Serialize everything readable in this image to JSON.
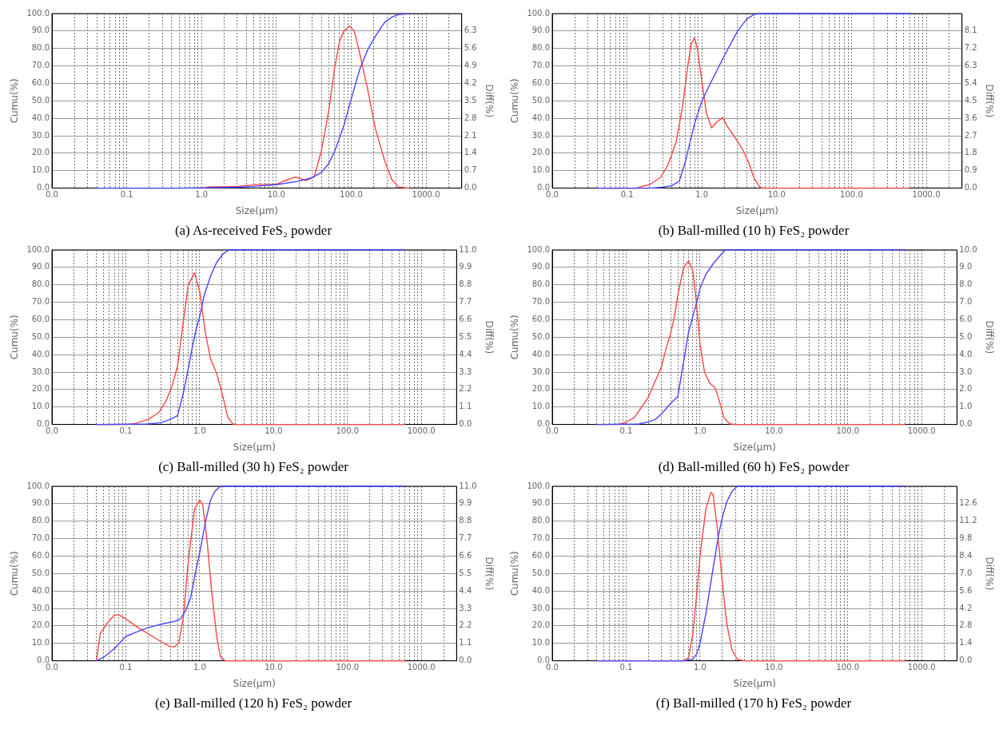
{
  "chart_data": [
    {
      "type": "line",
      "title": "(a) As-received FeS₂ powder",
      "xlabel": "Size(μm)",
      "ylabel": "Cumu(%)",
      "y2label": "Diff(%)",
      "log": "x",
      "grid": true,
      "xlim": [
        0.01,
        3000
      ],
      "ylim": [
        0,
        100
      ],
      "y2lim": [
        0,
        7
      ],
      "xticks": [
        {
          "value": 0.01,
          "label": "0.0"
        },
        {
          "value": 0.02,
          "label": null
        },
        {
          "value": 0.03,
          "label": null
        },
        {
          "value": 0.04,
          "label": null
        },
        {
          "value": 0.05,
          "label": null
        },
        {
          "value": 0.06,
          "label": null
        },
        {
          "value": 0.07,
          "label": null
        },
        {
          "value": 0.08,
          "label": null
        },
        {
          "value": 0.09,
          "label": null
        },
        {
          "value": 0.1,
          "label": "0.1"
        },
        {
          "value": 0.2,
          "label": null
        },
        {
          "value": 0.3,
          "label": null
        },
        {
          "value": 0.4,
          "label": null
        },
        {
          "value": 0.5,
          "label": null
        },
        {
          "value": 0.6,
          "label": null
        },
        {
          "value": 0.7,
          "label": null
        },
        {
          "value": 0.8,
          "label": null
        },
        {
          "value": 0.9,
          "label": null
        },
        {
          "value": 1,
          "label": "1.0"
        },
        {
          "value": 2,
          "label": null
        },
        {
          "value": 3,
          "label": null
        },
        {
          "value": 4,
          "label": null
        },
        {
          "value": 5,
          "label": null
        },
        {
          "value": 6,
          "label": null
        },
        {
          "value": 7,
          "label": null
        },
        {
          "value": 8,
          "label": null
        },
        {
          "value": 9,
          "label": null
        },
        {
          "value": 10,
          "label": "10.0"
        },
        {
          "value": 20,
          "label": null
        },
        {
          "value": 30,
          "label": null
        },
        {
          "value": 40,
          "label": null
        },
        {
          "value": 50,
          "label": null
        },
        {
          "value": 60,
          "label": null
        },
        {
          "value": 70,
          "label": null
        },
        {
          "value": 80,
          "label": null
        },
        {
          "value": 90,
          "label": null
        },
        {
          "value": 100,
          "label": "100.0"
        },
        {
          "value": 200,
          "label": null
        },
        {
          "value": 300,
          "label": null
        },
        {
          "value": 400,
          "label": null
        },
        {
          "value": 500,
          "label": null
        },
        {
          "value": 600,
          "label": null
        },
        {
          "value": 700,
          "label": null
        },
        {
          "value": 800,
          "label": null
        },
        {
          "value": 900,
          "label": null
        },
        {
          "value": 1000,
          "label": "1000.0"
        },
        {
          "value": 2000,
          "label": null
        }
      ],
      "yticks": [
        {
          "value": 0,
          "label": "0.0"
        },
        {
          "value": 10,
          "label": "10.0"
        },
        {
          "value": 20,
          "label": "20.0"
        },
        {
          "value": 30,
          "label": "30.0"
        },
        {
          "value": 40,
          "label": "40.0"
        },
        {
          "value": 50,
          "label": "50.0"
        },
        {
          "value": 60,
          "label": "60.0"
        },
        {
          "value": 70,
          "label": "70.0"
        },
        {
          "value": 80,
          "label": "80.0"
        },
        {
          "value": 90,
          "label": "90.0"
        },
        {
          "value": 100,
          "label": "100.0"
        }
      ],
      "y2ticks": [
        {
          "value": 0,
          "label": "0.0"
        },
        0.7,
        1.4,
        2.1,
        2.8,
        3.5,
        4.2,
        4.9,
        5.6,
        6.3
      ],
      "series": [
        {
          "color": "#4444ff",
          "x": [
            0.04,
            0.5,
            1,
            3,
            5,
            10,
            20,
            30,
            40,
            50,
            60,
            80,
            100,
            130,
            165,
            210,
            280,
            350,
            430,
            600
          ],
          "values": [
            0,
            0,
            0.2,
            0.5,
            1,
            2,
            4,
            6,
            9,
            14,
            21,
            36,
            51,
            68,
            79,
            87,
            95,
            98,
            99.5,
            100
          ]
        },
        {
          "color": "#ff4444",
          "axis": "y2",
          "x": [
            1,
            1.3,
            2,
            3,
            6,
            10,
            13,
            18,
            25,
            32,
            40,
            50,
            60,
            70,
            80,
            95,
            110,
            130,
            165,
            210,
            280,
            350,
            430,
            600
          ],
          "values": [
            0,
            0.05,
            0.05,
            0.07,
            0.15,
            0.15,
            0.3,
            0.45,
            0.3,
            0.45,
            1.5,
            3.1,
            4.8,
            5.9,
            6.3,
            6.5,
            6.3,
            5.4,
            4.0,
            2.4,
            1.1,
            0.34,
            0.04,
            0
          ]
        }
      ]
    },
    {
      "type": "line",
      "title": "(b) Ball-milled (10 h) FeS₂ powder",
      "xlabel": "Size(μm)",
      "ylabel": "Cumu(%)",
      "y2label": "Diff(%)",
      "log": "x",
      "grid": true,
      "xlim": [
        0.01,
        3000
      ],
      "ylim": [
        0,
        100
      ],
      "y2lim": [
        0,
        9
      ],
      "xticks": [
        {
          "value": 0.01,
          "label": "0.0"
        },
        {
          "value": 0.02,
          "label": null
        },
        {
          "value": 0.03,
          "label": null
        },
        {
          "value": 0.04,
          "label": null
        },
        {
          "value": 0.05,
          "label": null
        },
        {
          "value": 0.06,
          "label": null
        },
        {
          "value": 0.07,
          "label": null
        },
        {
          "value": 0.08,
          "label": null
        },
        {
          "value": 0.09,
          "label": null
        },
        {
          "value": 0.1,
          "label": "0.1"
        },
        {
          "value": 0.2,
          "label": null
        },
        {
          "value": 0.3,
          "label": null
        },
        {
          "value": 0.4,
          "label": null
        },
        {
          "value": 0.5,
          "label": null
        },
        {
          "value": 0.6,
          "label": null
        },
        {
          "value": 0.7,
          "label": null
        },
        {
          "value": 0.8,
          "label": null
        },
        {
          "value": 0.9,
          "label": null
        },
        {
          "value": 1,
          "label": "1.0"
        },
        {
          "value": 2,
          "label": null
        },
        {
          "value": 3,
          "label": null
        },
        {
          "value": 4,
          "label": null
        },
        {
          "value": 5,
          "label": null
        },
        {
          "value": 6,
          "label": null
        },
        {
          "value": 7,
          "label": null
        },
        {
          "value": 8,
          "label": null
        },
        {
          "value": 9,
          "label": null
        },
        {
          "value": 10,
          "label": "10.0"
        },
        {
          "value": 20,
          "label": null
        },
        {
          "value": 30,
          "label": null
        },
        {
          "value": 40,
          "label": null
        },
        {
          "value": 50,
          "label": null
        },
        {
          "value": 60,
          "label": null
        },
        {
          "value": 70,
          "label": null
        },
        {
          "value": 80,
          "label": null
        },
        {
          "value": 90,
          "label": null
        },
        {
          "value": 100,
          "label": "100.0"
        },
        {
          "value": 200,
          "label": null
        },
        {
          "value": 300,
          "label": null
        },
        {
          "value": 400,
          "label": null
        },
        {
          "value": 500,
          "label": null
        },
        {
          "value": 600,
          "label": null
        },
        {
          "value": 700,
          "label": null
        },
        {
          "value": 800,
          "label": null
        },
        {
          "value": 900,
          "label": null
        },
        {
          "value": 1000,
          "label": "1000.0"
        },
        {
          "value": 2000,
          "label": null
        }
      ],
      "yticks": [
        {
          "value": 0,
          "label": "0.0"
        },
        {
          "value": 10,
          "label": "10.0"
        },
        {
          "value": 20,
          "label": "20.0"
        },
        {
          "value": 30,
          "label": "30.0"
        },
        {
          "value": 40,
          "label": "40.0"
        },
        {
          "value": 50,
          "label": "50.0"
        },
        {
          "value": 60,
          "label": "60.0"
        },
        {
          "value": 70,
          "label": "70.0"
        },
        {
          "value": 80,
          "label": "80.0"
        },
        {
          "value": 90,
          "label": "90.0"
        },
        {
          "value": 100,
          "label": "100.0"
        }
      ],
      "y2ticks": [
        {
          "value": 0,
          "label": "0.0"
        },
        0.9,
        1.8,
        2.7,
        3.6,
        4.5,
        5.4,
        6.3,
        7.2,
        8.1
      ],
      "series": [
        {
          "color": "#4444ff",
          "x": [
            0.04,
            0.2,
            0.3,
            0.4,
            0.5,
            0.6,
            0.7,
            0.8,
            1,
            1.3,
            2,
            3,
            4,
            5,
            6,
            600
          ],
          "values": [
            0,
            0,
            0.5,
            1.5,
            4,
            15,
            27,
            37,
            50,
            60,
            76,
            90,
            97,
            99.5,
            100,
            100
          ]
        },
        {
          "color": "#ff4444",
          "axis": "y2",
          "x": [
            0.04,
            0.13,
            0.2,
            0.28,
            0.35,
            0.45,
            0.55,
            0.65,
            0.72,
            0.8,
            0.87,
            1,
            1.15,
            1.35,
            1.6,
            1.9,
            2.2,
            2.7,
            3.5,
            4.2,
            5,
            6,
            7,
            600
          ],
          "values": [
            0,
            0,
            0.18,
            0.55,
            1.17,
            2.34,
            4.18,
            6.35,
            7.44,
            7.75,
            7.2,
            5.5,
            3.85,
            3.1,
            3.43,
            3.63,
            3.17,
            2.68,
            2.0,
            1.34,
            0.5,
            0.03,
            0,
            0
          ]
        }
      ]
    },
    {
      "type": "line",
      "title": "(c) Ball-milled (30 h) FeS₂ powder",
      "xlabel": "Size(μm)",
      "ylabel": "Cumu(%)",
      "y2label": "Diff(%)",
      "log": "x",
      "grid": true,
      "xlim": [
        0.01,
        3000
      ],
      "ylim": [
        0,
        100
      ],
      "y2lim": [
        0,
        11
      ],
      "xticks": [
        {
          "value": 0.01,
          "label": "0.0"
        },
        {
          "value": 0.02,
          "label": null
        },
        {
          "value": 0.03,
          "label": null
        },
        {
          "value": 0.04,
          "label": null
        },
        {
          "value": 0.05,
          "label": null
        },
        {
          "value": 0.06,
          "label": null
        },
        {
          "value": 0.07,
          "label": null
        },
        {
          "value": 0.08,
          "label": null
        },
        {
          "value": 0.09,
          "label": null
        },
        {
          "value": 0.1,
          "label": "0.1"
        },
        {
          "value": 0.2,
          "label": null
        },
        {
          "value": 0.3,
          "label": null
        },
        {
          "value": 0.4,
          "label": null
        },
        {
          "value": 0.5,
          "label": null
        },
        {
          "value": 0.6,
          "label": null
        },
        {
          "value": 0.7,
          "label": null
        },
        {
          "value": 0.8,
          "label": null
        },
        {
          "value": 0.9,
          "label": null
        },
        {
          "value": 1,
          "label": "1.0"
        },
        {
          "value": 2,
          "label": null
        },
        {
          "value": 3,
          "label": null
        },
        {
          "value": 4,
          "label": null
        },
        {
          "value": 5,
          "label": null
        },
        {
          "value": 6,
          "label": null
        },
        {
          "value": 7,
          "label": null
        },
        {
          "value": 8,
          "label": null
        },
        {
          "value": 9,
          "label": null
        },
        {
          "value": 10,
          "label": "10.0"
        },
        {
          "value": 20,
          "label": null
        },
        {
          "value": 30,
          "label": null
        },
        {
          "value": 40,
          "label": null
        },
        {
          "value": 50,
          "label": null
        },
        {
          "value": 60,
          "label": null
        },
        {
          "value": 70,
          "label": null
        },
        {
          "value": 80,
          "label": null
        },
        {
          "value": 90,
          "label": null
        },
        {
          "value": 100,
          "label": "100.0"
        },
        {
          "value": 200,
          "label": null
        },
        {
          "value": 300,
          "label": null
        },
        {
          "value": 400,
          "label": null
        },
        {
          "value": 500,
          "label": null
        },
        {
          "value": 600,
          "label": null
        },
        {
          "value": 700,
          "label": null
        },
        {
          "value": 800,
          "label": null
        },
        {
          "value": 900,
          "label": null
        },
        {
          "value": 1000,
          "label": "1000.0"
        },
        {
          "value": 2000,
          "label": null
        }
      ],
      "yticks": [
        {
          "value": 0,
          "label": "0.0"
        },
        {
          "value": 10,
          "label": "10.0"
        },
        {
          "value": 20,
          "label": "20.0"
        },
        {
          "value": 30,
          "label": "30.0"
        },
        {
          "value": 40,
          "label": "40.0"
        },
        {
          "value": 50,
          "label": "50.0"
        },
        {
          "value": 60,
          "label": "60.0"
        },
        {
          "value": 70,
          "label": "70.0"
        },
        {
          "value": 80,
          "label": "80.0"
        },
        {
          "value": 90,
          "label": "90.0"
        },
        {
          "value": 100,
          "label": "100.0"
        }
      ],
      "y2ticks": [
        {
          "value": 0,
          "label": "0.0"
        },
        1.1,
        2.2,
        3.3,
        4.4,
        5.5,
        6.6,
        7.7,
        8.8,
        9.9,
        {
          "value": 11,
          "label": "11.0"
        }
      ],
      "series": [
        {
          "color": "#4444ff",
          "x": [
            0.04,
            0.2,
            0.3,
            0.4,
            0.5,
            0.6,
            0.7,
            0.8,
            0.9,
            1,
            1.15,
            1.4,
            1.7,
            2.1,
            2.5,
            600
          ],
          "values": [
            0,
            0.3,
            1,
            3,
            5,
            18,
            32,
            45,
            55,
            62,
            74,
            85,
            93,
            98,
            100,
            100
          ]
        },
        {
          "color": "#ff4444",
          "axis": "y2",
          "x": [
            0.04,
            0.1,
            0.13,
            0.2,
            0.28,
            0.35,
            0.42,
            0.5,
            0.6,
            0.7,
            0.85,
            1,
            1.2,
            1.4,
            1.7,
            2,
            2.4,
            2.8,
            3,
            600
          ],
          "values": [
            0,
            0,
            0.05,
            0.31,
            0.76,
            1.48,
            2.4,
            3.64,
            6.5,
            8.78,
            9.56,
            8.37,
            5.7,
            4.15,
            3.2,
            2.0,
            0.45,
            0.04,
            0,
            0
          ]
        }
      ]
    },
    {
      "type": "line",
      "title": "(d) Ball-milled (60 h) FeS₂ powder",
      "xlabel": "Size(μm)",
      "ylabel": "Cumu(%)",
      "y2label": "Diff(%)",
      "log": "x",
      "grid": true,
      "xlim": [
        0.01,
        3000
      ],
      "ylim": [
        0,
        100
      ],
      "y2lim": [
        0,
        10
      ],
      "xticks": [
        {
          "value": 0.01,
          "label": "0.0"
        },
        {
          "value": 0.02,
          "label": null
        },
        {
          "value": 0.03,
          "label": null
        },
        {
          "value": 0.04,
          "label": null
        },
        {
          "value": 0.05,
          "label": null
        },
        {
          "value": 0.06,
          "label": null
        },
        {
          "value": 0.07,
          "label": null
        },
        {
          "value": 0.08,
          "label": null
        },
        {
          "value": 0.09,
          "label": null
        },
        {
          "value": 0.1,
          "label": "0.1"
        },
        {
          "value": 0.2,
          "label": null
        },
        {
          "value": 0.3,
          "label": null
        },
        {
          "value": 0.4,
          "label": null
        },
        {
          "value": 0.5,
          "label": null
        },
        {
          "value": 0.6,
          "label": null
        },
        {
          "value": 0.7,
          "label": null
        },
        {
          "value": 0.8,
          "label": null
        },
        {
          "value": 0.9,
          "label": null
        },
        {
          "value": 1,
          "label": "1.0"
        },
        {
          "value": 2,
          "label": null
        },
        {
          "value": 3,
          "label": null
        },
        {
          "value": 4,
          "label": null
        },
        {
          "value": 5,
          "label": null
        },
        {
          "value": 6,
          "label": null
        },
        {
          "value": 7,
          "label": null
        },
        {
          "value": 8,
          "label": null
        },
        {
          "value": 9,
          "label": null
        },
        {
          "value": 10,
          "label": "10.0"
        },
        {
          "value": 20,
          "label": null
        },
        {
          "value": 30,
          "label": null
        },
        {
          "value": 40,
          "label": null
        },
        {
          "value": 50,
          "label": null
        },
        {
          "value": 60,
          "label": null
        },
        {
          "value": 70,
          "label": null
        },
        {
          "value": 80,
          "label": null
        },
        {
          "value": 90,
          "label": null
        },
        {
          "value": 100,
          "label": "100.0"
        },
        {
          "value": 200,
          "label": null
        },
        {
          "value": 300,
          "label": null
        },
        {
          "value": 400,
          "label": null
        },
        {
          "value": 500,
          "label": null
        },
        {
          "value": 600,
          "label": null
        },
        {
          "value": 700,
          "label": null
        },
        {
          "value": 800,
          "label": null
        },
        {
          "value": 900,
          "label": null
        },
        {
          "value": 1000,
          "label": "1000.0"
        },
        {
          "value": 2000,
          "label": null
        }
      ],
      "yticks": [
        {
          "value": 0,
          "label": "0.0"
        },
        {
          "value": 10,
          "label": "10.0"
        },
        {
          "value": 20,
          "label": "20.0"
        },
        {
          "value": 30,
          "label": "30.0"
        },
        {
          "value": 40,
          "label": "40.0"
        },
        {
          "value": 50,
          "label": "50.0"
        },
        {
          "value": 60,
          "label": "60.0"
        },
        {
          "value": 70,
          "label": "70.0"
        },
        {
          "value": 80,
          "label": "80.0"
        },
        {
          "value": 90,
          "label": "90.0"
        },
        {
          "value": 100,
          "label": "100.0"
        }
      ],
      "y2ticks": [
        {
          "value": 0,
          "label": "0.0"
        },
        {
          "value": 1,
          "label": "1.0"
        },
        {
          "value": 2,
          "label": "2.0"
        },
        {
          "value": 3,
          "label": "3.0"
        },
        {
          "value": 4,
          "label": "4.0"
        },
        {
          "value": 5,
          "label": "5.0"
        },
        {
          "value": 6,
          "label": "6.0"
        },
        {
          "value": 7,
          "label": "7.0"
        },
        {
          "value": 8,
          "label": "8.0"
        },
        {
          "value": 9,
          "label": "9.0"
        },
        {
          "value": 10,
          "label": "10.0"
        }
      ],
      "series": [
        {
          "color": "#4444ff",
          "x": [
            0.04,
            0.15,
            0.2,
            0.25,
            0.3,
            0.4,
            0.5,
            0.6,
            0.7,
            0.8,
            0.9,
            1,
            1.2,
            1.5,
            1.8,
            2.2,
            600
          ],
          "values": [
            0,
            0.3,
            1.5,
            3,
            6,
            12,
            16,
            36,
            53,
            62,
            70,
            78,
            86,
            92,
            96,
            100,
            100
          ]
        },
        {
          "color": "#ff4444",
          "axis": "y2",
          "x": [
            0.04,
            0.08,
            0.1,
            0.13,
            0.2,
            0.3,
            0.35,
            0.4,
            0.45,
            0.5,
            0.6,
            0.7,
            0.8,
            0.9,
            1,
            1.15,
            1.35,
            1.6,
            1.8,
            2.1,
            2.5,
            3,
            600
          ],
          "values": [
            0,
            0,
            0.13,
            0.41,
            1.57,
            3.3,
            4.4,
            5.2,
            6.2,
            7.4,
            9.0,
            9.38,
            8.8,
            6.86,
            4.6,
            3.0,
            2.37,
            2.1,
            1.44,
            0.41,
            0.04,
            0,
            0
          ]
        }
      ]
    },
    {
      "type": "line",
      "title": "(e) Ball-milled (120 h) FeS₂ powder",
      "xlabel": "Size(μm)",
      "ylabel": "Cumu(%)",
      "y2label": "Diff(%)",
      "log": "x",
      "grid": true,
      "xlim": [
        0.01,
        3000
      ],
      "ylim": [
        0,
        100
      ],
      "y2lim": [
        0,
        11
      ],
      "xticks": [
        {
          "value": 0.01,
          "label": "0.0"
        },
        {
          "value": 0.02,
          "label": null
        },
        {
          "value": 0.03,
          "label": null
        },
        {
          "value": 0.04,
          "label": null
        },
        {
          "value": 0.05,
          "label": null
        },
        {
          "value": 0.06,
          "label": null
        },
        {
          "value": 0.07,
          "label": null
        },
        {
          "value": 0.08,
          "label": null
        },
        {
          "value": 0.09,
          "label": null
        },
        {
          "value": 0.1,
          "label": "0.1"
        },
        {
          "value": 0.2,
          "label": null
        },
        {
          "value": 0.3,
          "label": null
        },
        {
          "value": 0.4,
          "label": null
        },
        {
          "value": 0.5,
          "label": null
        },
        {
          "value": 0.6,
          "label": null
        },
        {
          "value": 0.7,
          "label": null
        },
        {
          "value": 0.8,
          "label": null
        },
        {
          "value": 0.9,
          "label": null
        },
        {
          "value": 1,
          "label": "1.0"
        },
        {
          "value": 2,
          "label": null
        },
        {
          "value": 3,
          "label": null
        },
        {
          "value": 4,
          "label": null
        },
        {
          "value": 5,
          "label": null
        },
        {
          "value": 6,
          "label": null
        },
        {
          "value": 7,
          "label": null
        },
        {
          "value": 8,
          "label": null
        },
        {
          "value": 9,
          "label": null
        },
        {
          "value": 10,
          "label": "10.0"
        },
        {
          "value": 20,
          "label": null
        },
        {
          "value": 30,
          "label": null
        },
        {
          "value": 40,
          "label": null
        },
        {
          "value": 50,
          "label": null
        },
        {
          "value": 60,
          "label": null
        },
        {
          "value": 70,
          "label": null
        },
        {
          "value": 80,
          "label": null
        },
        {
          "value": 90,
          "label": null
        },
        {
          "value": 100,
          "label": "100.0"
        },
        {
          "value": 200,
          "label": null
        },
        {
          "value": 300,
          "label": null
        },
        {
          "value": 400,
          "label": null
        },
        {
          "value": 500,
          "label": null
        },
        {
          "value": 600,
          "label": null
        },
        {
          "value": 700,
          "label": null
        },
        {
          "value": 800,
          "label": null
        },
        {
          "value": 900,
          "label": null
        },
        {
          "value": 1000,
          "label": "1000.0"
        },
        {
          "value": 2000,
          "label": null
        }
      ],
      "yticks": [
        {
          "value": 0,
          "label": "0.0"
        },
        {
          "value": 10,
          "label": "10.0"
        },
        {
          "value": 20,
          "label": "20.0"
        },
        {
          "value": 30,
          "label": "30.0"
        },
        {
          "value": 40,
          "label": "40.0"
        },
        {
          "value": 50,
          "label": "50.0"
        },
        {
          "value": 60,
          "label": "60.0"
        },
        {
          "value": 70,
          "label": "70.0"
        },
        {
          "value": 80,
          "label": "80.0"
        },
        {
          "value": 90,
          "label": "90.0"
        },
        {
          "value": 100,
          "label": "100.0"
        }
      ],
      "y2ticks": [
        {
          "value": 0,
          "label": "0.0"
        },
        1.1,
        2.2,
        3.3,
        4.4,
        5.5,
        6.6,
        7.7,
        8.8,
        9.9,
        {
          "value": 11,
          "label": "11.0"
        }
      ],
      "series": [
        {
          "color": "#4444ff",
          "x": [
            0.04,
            0.05,
            0.07,
            0.1,
            0.15,
            0.2,
            0.3,
            0.45,
            0.55,
            0.65,
            0.75,
            0.9,
            1,
            1.2,
            1.4,
            1.6,
            1.9,
            600
          ],
          "values": [
            0,
            2,
            7,
            14,
            17,
            19,
            21,
            22.5,
            24,
            29,
            36,
            53,
            62,
            80,
            92,
            97,
            100,
            100
          ]
        },
        {
          "color": "#ff4444",
          "axis": "y2",
          "x": [
            0.04,
            0.045,
            0.055,
            0.07,
            0.08,
            0.1,
            0.15,
            0.2,
            0.3,
            0.4,
            0.45,
            0.52,
            0.6,
            0.7,
            0.85,
            1,
            1.1,
            1.25,
            1.45,
            1.7,
            1.9,
            2.2,
            600
          ],
          "values": [
            0,
            1.7,
            2.33,
            2.89,
            2.9,
            2.64,
            2.06,
            1.71,
            1.2,
            0.89,
            0.88,
            1.1,
            2.74,
            6.25,
            9.56,
            10.13,
            9.82,
            7.7,
            4.4,
            1.5,
            0.27,
            0,
            0
          ]
        }
      ]
    },
    {
      "type": "line",
      "title": "(f) Ball-milled (170 h) FeS₂ powder",
      "xlabel": "Size(μm)",
      "ylabel": "Cumu(%)",
      "y2label": "Diff(%)",
      "log": "x",
      "grid": true,
      "xlim": [
        0.01,
        3000
      ],
      "ylim": [
        0,
        100
      ],
      "y2lim": [
        0,
        14
      ],
      "xticks": [
        {
          "value": 0.01,
          "label": "0.0"
        },
        {
          "value": 0.02,
          "label": null
        },
        {
          "value": 0.03,
          "label": null
        },
        {
          "value": 0.04,
          "label": null
        },
        {
          "value": 0.05,
          "label": null
        },
        {
          "value": 0.06,
          "label": null
        },
        {
          "value": 0.07,
          "label": null
        },
        {
          "value": 0.08,
          "label": null
        },
        {
          "value": 0.09,
          "label": null
        },
        {
          "value": 0.1,
          "label": "0.1"
        },
        {
          "value": 0.2,
          "label": null
        },
        {
          "value": 0.3,
          "label": null
        },
        {
          "value": 0.4,
          "label": null
        },
        {
          "value": 0.5,
          "label": null
        },
        {
          "value": 0.6,
          "label": null
        },
        {
          "value": 0.7,
          "label": null
        },
        {
          "value": 0.8,
          "label": null
        },
        {
          "value": 0.9,
          "label": null
        },
        {
          "value": 1,
          "label": "1.0"
        },
        {
          "value": 2,
          "label": null
        },
        {
          "value": 3,
          "label": null
        },
        {
          "value": 4,
          "label": null
        },
        {
          "value": 5,
          "label": null
        },
        {
          "value": 6,
          "label": null
        },
        {
          "value": 7,
          "label": null
        },
        {
          "value": 8,
          "label": null
        },
        {
          "value": 9,
          "label": null
        },
        {
          "value": 10,
          "label": "10.0"
        },
        {
          "value": 20,
          "label": null
        },
        {
          "value": 30,
          "label": null
        },
        {
          "value": 40,
          "label": null
        },
        {
          "value": 50,
          "label": null
        },
        {
          "value": 60,
          "label": null
        },
        {
          "value": 70,
          "label": null
        },
        {
          "value": 80,
          "label": null
        },
        {
          "value": 90,
          "label": null
        },
        {
          "value": 100,
          "label": "100.0"
        },
        {
          "value": 200,
          "label": null
        },
        {
          "value": 300,
          "label": null
        },
        {
          "value": 400,
          "label": null
        },
        {
          "value": 500,
          "label": null
        },
        {
          "value": 600,
          "label": null
        },
        {
          "value": 700,
          "label": null
        },
        {
          "value": 800,
          "label": null
        },
        {
          "value": 900,
          "label": null
        },
        {
          "value": 1000,
          "label": "1000.0"
        },
        {
          "value": 2000,
          "label": null
        }
      ],
      "yticks": [
        {
          "value": 0,
          "label": "0.0"
        },
        {
          "value": 10,
          "label": "10.0"
        },
        {
          "value": 20,
          "label": "20.0"
        },
        {
          "value": 30,
          "label": "30.0"
        },
        {
          "value": 40,
          "label": "40.0"
        },
        {
          "value": 50,
          "label": "50.0"
        },
        {
          "value": 60,
          "label": "60.0"
        },
        {
          "value": 70,
          "label": "70.0"
        },
        {
          "value": 80,
          "label": "80.0"
        },
        {
          "value": 90,
          "label": "90.0"
        },
        {
          "value": 100,
          "label": "100.0"
        }
      ],
      "y2ticks": [
        {
          "value": 0,
          "label": "0.0"
        },
        1.4,
        2.8,
        4.2,
        5.6,
        {
          "value": 7,
          "label": "7.0"
        },
        8.4,
        9.8,
        11.2,
        12.6
      ],
      "series": [
        {
          "color": "#4444ff",
          "x": [
            0.04,
            0.6,
            0.8,
            0.9,
            1,
            1.2,
            1.4,
            1.6,
            1.8,
            2,
            2.3,
            2.7,
            3.2,
            600
          ],
          "values": [
            0,
            0,
            1,
            4,
            10,
            27,
            45,
            60,
            73,
            82,
            91,
            97,
            100,
            100
          ]
        },
        {
          "color": "#ff4444",
          "axis": "y2",
          "x": [
            0.04,
            0.6,
            0.7,
            0.8,
            0.9,
            1,
            1.2,
            1.4,
            1.5,
            1.7,
            2,
            2.3,
            2.7,
            3.2,
            4,
            600
          ],
          "values": [
            0,
            0,
            0.26,
            2.2,
            5.3,
            8.4,
            12.2,
            13.5,
            13.35,
            10.8,
            6.35,
            2.98,
            0.9,
            0.1,
            0,
            0
          ]
        }
      ]
    }
  ]
}
